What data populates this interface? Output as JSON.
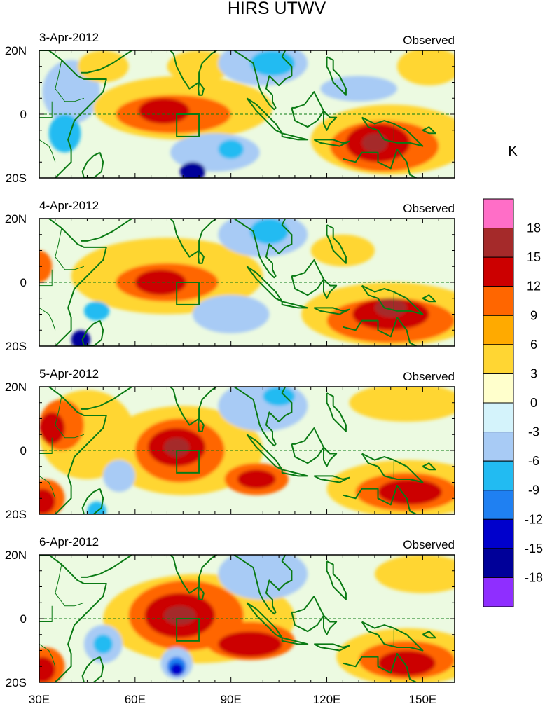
{
  "title": "HIRS UTWV",
  "unit": "K",
  "panel_tag": "Observed",
  "y_labels": [
    "20N",
    "0",
    "20S"
  ],
  "x_labels": [
    "30E",
    "60E",
    "90E",
    "120E",
    "150E"
  ],
  "colorbar": {
    "colors": [
      "#ff6ec7",
      "#a52a2a",
      "#cc0000",
      "#ff6600",
      "#ffaa00",
      "#ffd633",
      "#ffffcc",
      "#d4f3fb",
      "#a8cbf5",
      "#22bbf2",
      "#1f80f2",
      "#0000cc",
      "#000099",
      "#8f2eff"
    ],
    "labels": [
      "18",
      "15",
      "12",
      "9",
      "6",
      "3",
      "0",
      "-3",
      "-6",
      "-9",
      "-12",
      "-15",
      "-18"
    ]
  },
  "panels": [
    {
      "date": "3-Apr-2012",
      "blobs": [
        {
          "c": "#a8cbf5",
          "lon": 40,
          "lat": 7,
          "rx": 9,
          "ry": 10
        },
        {
          "c": "#22bbf2",
          "lon": 38,
          "lat": -6,
          "rx": 5,
          "ry": 6
        },
        {
          "c": "#ffd633",
          "lon": 75,
          "lat": 2,
          "rx": 28,
          "ry": 10
        },
        {
          "c": "#ff6600",
          "lon": 72,
          "lat": 0,
          "rx": 18,
          "ry": 6
        },
        {
          "c": "#cc0000",
          "lon": 69,
          "lat": 1,
          "rx": 8,
          "ry": 4
        },
        {
          "c": "#ffd633",
          "lon": 80,
          "lat": 15,
          "rx": 10,
          "ry": 5
        },
        {
          "c": "#a8cbf5",
          "lon": 100,
          "lat": 16,
          "rx": 14,
          "ry": 7
        },
        {
          "c": "#22bbf2",
          "lon": 103,
          "lat": 16,
          "rx": 7,
          "ry": 4
        },
        {
          "c": "#a8cbf5",
          "lon": 85,
          "lat": -12,
          "rx": 14,
          "ry": 6
        },
        {
          "c": "#22bbf2",
          "lon": 90,
          "lat": -11,
          "rx": 4,
          "ry": 3
        },
        {
          "c": "#000099",
          "lon": 78,
          "lat": -18,
          "rx": 4,
          "ry": 3
        },
        {
          "c": "#ffd633",
          "lon": 140,
          "lat": -8,
          "rx": 25,
          "ry": 11
        },
        {
          "c": "#ff6600",
          "lon": 138,
          "lat": -10,
          "rx": 17,
          "ry": 8
        },
        {
          "c": "#cc0000",
          "lon": 136,
          "lat": -9,
          "rx": 10,
          "ry": 6
        },
        {
          "c": "#a52a2a",
          "lon": 135,
          "lat": -9,
          "rx": 4,
          "ry": 3
        },
        {
          "c": "#ffd633",
          "lon": 152,
          "lat": 15,
          "rx": 10,
          "ry": 6
        },
        {
          "c": "#a8cbf5",
          "lon": 130,
          "lat": 8,
          "rx": 12,
          "ry": 4
        },
        {
          "c": "#ffd633",
          "lon": 50,
          "lat": 15,
          "rx": 8,
          "ry": 5
        }
      ]
    },
    {
      "date": "4-Apr-2012",
      "blobs": [
        {
          "c": "#ffd633",
          "lon": 70,
          "lat": 2,
          "rx": 30,
          "ry": 12
        },
        {
          "c": "#ff6600",
          "lon": 70,
          "lat": 0,
          "rx": 16,
          "ry": 6
        },
        {
          "c": "#cc0000",
          "lon": 68,
          "lat": 0,
          "rx": 8,
          "ry": 4
        },
        {
          "c": "#a8cbf5",
          "lon": 100,
          "lat": 15,
          "rx": 14,
          "ry": 7
        },
        {
          "c": "#22bbf2",
          "lon": 102,
          "lat": 16,
          "rx": 6,
          "ry": 4
        },
        {
          "c": "#22bbf2",
          "lon": 48,
          "lat": -9,
          "rx": 4,
          "ry": 3
        },
        {
          "c": "#000099",
          "lon": 43,
          "lat": -18,
          "rx": 3,
          "ry": 3
        },
        {
          "c": "#ff6600",
          "lon": 30,
          "lat": 5,
          "rx": 4,
          "ry": 5
        },
        {
          "c": "#ffd633",
          "lon": 140,
          "lat": -10,
          "rx": 28,
          "ry": 10
        },
        {
          "c": "#ff6600",
          "lon": 140,
          "lat": -12,
          "rx": 20,
          "ry": 7
        },
        {
          "c": "#cc0000",
          "lon": 140,
          "lat": -10,
          "rx": 12,
          "ry": 5
        },
        {
          "c": "#a52a2a",
          "lon": 140,
          "lat": -8,
          "rx": 5,
          "ry": 3
        },
        {
          "c": "#ffd633",
          "lon": 125,
          "lat": 10,
          "rx": 10,
          "ry": 5
        },
        {
          "c": "#a8cbf5",
          "lon": 90,
          "lat": -10,
          "rx": 12,
          "ry": 6
        }
      ]
    },
    {
      "date": "5-Apr-2012",
      "blobs": [
        {
          "c": "#ffd633",
          "lon": 45,
          "lat": 5,
          "rx": 15,
          "ry": 14
        },
        {
          "c": "#ff6600",
          "lon": 37,
          "lat": 8,
          "rx": 7,
          "ry": 8
        },
        {
          "c": "#cc0000",
          "lon": 34,
          "lat": 7,
          "rx": 4,
          "ry": 5
        },
        {
          "c": "#ffd633",
          "lon": 75,
          "lat": 0,
          "rx": 25,
          "ry": 14
        },
        {
          "c": "#ff6600",
          "lon": 74,
          "lat": 0,
          "rx": 14,
          "ry": 10
        },
        {
          "c": "#cc0000",
          "lon": 73,
          "lat": 1,
          "rx": 9,
          "ry": 6
        },
        {
          "c": "#a52a2a",
          "lon": 73,
          "lat": 1,
          "rx": 4,
          "ry": 3
        },
        {
          "c": "#ff6600",
          "lon": 98,
          "lat": -9,
          "rx": 10,
          "ry": 5
        },
        {
          "c": "#cc0000",
          "lon": 98,
          "lat": -9,
          "rx": 6,
          "ry": 3
        },
        {
          "c": "#ffd633",
          "lon": 145,
          "lat": -12,
          "rx": 25,
          "ry": 9
        },
        {
          "c": "#ff6600",
          "lon": 145,
          "lat": -13,
          "rx": 16,
          "ry": 6
        },
        {
          "c": "#cc0000",
          "lon": 146,
          "lat": -13,
          "rx": 10,
          "ry": 4
        },
        {
          "c": "#ff6600",
          "lon": 32,
          "lat": -15,
          "rx": 6,
          "ry": 6
        },
        {
          "c": "#cc0000",
          "lon": 31,
          "lat": -16,
          "rx": 4,
          "ry": 4
        },
        {
          "c": "#ffd633",
          "lon": 145,
          "lat": 15,
          "rx": 18,
          "ry": 6
        },
        {
          "c": "#a8cbf5",
          "lon": 100,
          "lat": 14,
          "rx": 14,
          "ry": 8
        },
        {
          "c": "#22bbf2",
          "lon": 105,
          "lat": 17,
          "rx": 5,
          "ry": 3
        },
        {
          "c": "#22bbf2",
          "lon": 48,
          "lat": -19,
          "rx": 3,
          "ry": 3
        },
        {
          "c": "#a8cbf5",
          "lon": 55,
          "lat": -8,
          "rx": 5,
          "ry": 5
        }
      ]
    },
    {
      "date": "6-Apr-2012",
      "blobs": [
        {
          "c": "#ffd633",
          "lon": 80,
          "lat": 0,
          "rx": 30,
          "ry": 14
        },
        {
          "c": "#ff6600",
          "lon": 76,
          "lat": 1,
          "rx": 18,
          "ry": 11
        },
        {
          "c": "#cc0000",
          "lon": 74,
          "lat": 1,
          "rx": 11,
          "ry": 7
        },
        {
          "c": "#a52a2a",
          "lon": 74,
          "lat": 1,
          "rx": 5,
          "ry": 3
        },
        {
          "c": "#ff6600",
          "lon": 96,
          "lat": -7,
          "rx": 14,
          "ry": 6
        },
        {
          "c": "#cc0000",
          "lon": 96,
          "lat": -8,
          "rx": 10,
          "ry": 4
        },
        {
          "c": "#ffd633",
          "lon": 145,
          "lat": -12,
          "rx": 22,
          "ry": 9
        },
        {
          "c": "#ff6600",
          "lon": 145,
          "lat": -13,
          "rx": 15,
          "ry": 6
        },
        {
          "c": "#cc0000",
          "lon": 145,
          "lat": -14,
          "rx": 9,
          "ry": 4
        },
        {
          "c": "#ff6600",
          "lon": 32,
          "lat": -15,
          "rx": 6,
          "ry": 6
        },
        {
          "c": "#cc0000",
          "lon": 31,
          "lat": -16,
          "rx": 4,
          "ry": 4
        },
        {
          "c": "#a8cbf5",
          "lon": 73,
          "lat": -14,
          "rx": 5,
          "ry": 5
        },
        {
          "c": "#1f80f2",
          "lon": 73,
          "lat": -15,
          "rx": 3,
          "ry": 3
        },
        {
          "c": "#0000cc",
          "lon": 73,
          "lat": -16,
          "rx": 2,
          "ry": 2
        },
        {
          "c": "#a8cbf5",
          "lon": 100,
          "lat": 14,
          "rx": 14,
          "ry": 8
        },
        {
          "c": "#a8cbf5",
          "lon": 50,
          "lat": -8,
          "rx": 6,
          "ry": 6
        },
        {
          "c": "#22bbf2",
          "lon": 50,
          "lat": -8,
          "rx": 3,
          "ry": 3
        },
        {
          "c": "#ffd633",
          "lon": 150,
          "lat": 14,
          "rx": 15,
          "ry": 6
        }
      ]
    }
  ]
}
